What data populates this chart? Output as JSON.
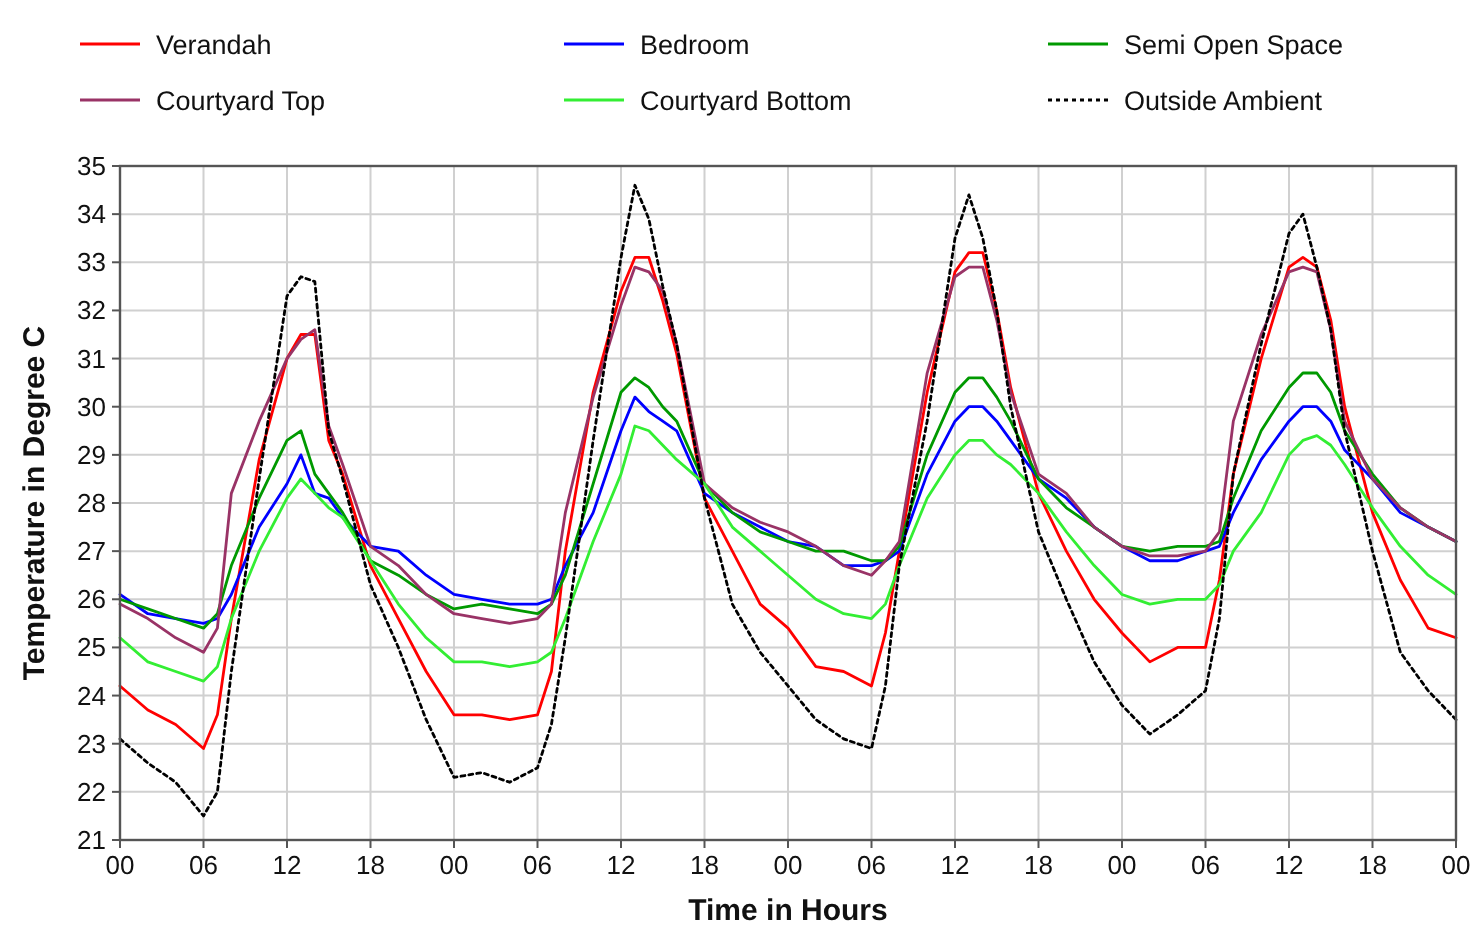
{
  "chart_data": {
    "type": "line",
    "xlabel": "Time in Hours",
    "ylabel": "Temperature in Degree C",
    "x": [
      0,
      2,
      4,
      6,
      7,
      8,
      10,
      12,
      13,
      14,
      15,
      16,
      18,
      20,
      22,
      24,
      26,
      28,
      30,
      31,
      32,
      34,
      36,
      37,
      38,
      39,
      40,
      42,
      44,
      46,
      48,
      50,
      52,
      54,
      55,
      56,
      58,
      60,
      61,
      62,
      63,
      64,
      66,
      68,
      70,
      72,
      74,
      76,
      78,
      79,
      80,
      82,
      84,
      85,
      86,
      87,
      88,
      90,
      92,
      94,
      96
    ],
    "xlim": [
      0,
      96
    ],
    "xticks": [
      {
        "value": 0,
        "label": "00"
      },
      {
        "value": 6,
        "label": "06"
      },
      {
        "value": 12,
        "label": "12"
      },
      {
        "value": 18,
        "label": "18"
      },
      {
        "value": 24,
        "label": "00"
      },
      {
        "value": 30,
        "label": "06"
      },
      {
        "value": 36,
        "label": "12"
      },
      {
        "value": 42,
        "label": "18"
      },
      {
        "value": 48,
        "label": "00"
      },
      {
        "value": 54,
        "label": "06"
      },
      {
        "value": 60,
        "label": "12"
      },
      {
        "value": 66,
        "label": "18"
      },
      {
        "value": 72,
        "label": "00"
      },
      {
        "value": 78,
        "label": "06"
      },
      {
        "value": 84,
        "label": "12"
      },
      {
        "value": 90,
        "label": "18"
      },
      {
        "value": 96,
        "label": "00"
      }
    ],
    "ylim": [
      21,
      35
    ],
    "yticks": [
      21,
      22,
      23,
      24,
      25,
      26,
      27,
      28,
      29,
      30,
      31,
      32,
      33,
      34,
      35
    ],
    "grid": true,
    "legend": "top",
    "marker": "none",
    "series": [
      {
        "name": "Verandah",
        "color": "#ff0000",
        "line_style": "solid",
        "values": [
          24.2,
          23.7,
          23.4,
          22.9,
          23.6,
          25.6,
          28.9,
          31.0,
          31.5,
          31.5,
          29.3,
          28.6,
          26.7,
          25.6,
          24.5,
          23.6,
          23.6,
          23.5,
          23.6,
          24.5,
          27.0,
          30.3,
          32.4,
          33.1,
          33.1,
          32.2,
          31.1,
          28.1,
          27.0,
          25.9,
          25.4,
          24.6,
          24.5,
          24.2,
          25.3,
          27.0,
          30.3,
          32.8,
          33.2,
          33.2,
          32.0,
          30.4,
          28.2,
          27.0,
          26.0,
          25.3,
          24.7,
          25.0,
          25.0,
          26.4,
          28.6,
          31.0,
          32.9,
          33.1,
          32.9,
          31.8,
          30.0,
          27.8,
          26.4,
          25.4,
          25.2
        ]
      },
      {
        "name": "Bedroom",
        "color": "#0000ff",
        "line_style": "solid",
        "values": [
          26.1,
          25.7,
          25.6,
          25.5,
          25.6,
          26.1,
          27.5,
          28.4,
          29.0,
          28.2,
          28.1,
          27.7,
          27.1,
          27.0,
          26.5,
          26.1,
          26.0,
          25.9,
          25.9,
          26.0,
          26.7,
          27.8,
          29.5,
          30.2,
          29.9,
          29.7,
          29.5,
          28.2,
          27.8,
          27.5,
          27.2,
          27.1,
          26.7,
          26.7,
          26.8,
          27.0,
          28.6,
          29.7,
          30.0,
          30.0,
          29.7,
          29.3,
          28.5,
          28.1,
          27.5,
          27.1,
          26.8,
          26.8,
          27.0,
          27.1,
          27.8,
          28.9,
          29.7,
          30.0,
          30.0,
          29.7,
          29.1,
          28.5,
          27.8,
          27.5,
          27.2
        ]
      },
      {
        "name": "Semi Open Space",
        "color": "#009900",
        "line_style": "solid",
        "values": [
          26.0,
          25.8,
          25.6,
          25.4,
          25.7,
          26.7,
          28.1,
          29.3,
          29.5,
          28.6,
          28.2,
          27.8,
          26.8,
          26.5,
          26.1,
          25.8,
          25.9,
          25.8,
          25.7,
          25.9,
          26.5,
          28.4,
          30.3,
          30.6,
          30.4,
          30.0,
          29.7,
          28.4,
          27.8,
          27.4,
          27.2,
          27.0,
          27.0,
          26.8,
          26.8,
          27.1,
          29.0,
          30.3,
          30.6,
          30.6,
          30.2,
          29.7,
          28.5,
          27.9,
          27.5,
          27.1,
          27.0,
          27.1,
          27.1,
          27.2,
          28.1,
          29.5,
          30.4,
          30.7,
          30.7,
          30.3,
          29.5,
          28.6,
          27.9,
          27.5,
          27.2
        ]
      },
      {
        "name": "Courtyard Top",
        "color": "#993366",
        "line_style": "solid",
        "values": [
          25.9,
          25.6,
          25.2,
          24.9,
          25.4,
          28.2,
          29.7,
          31.0,
          31.4,
          31.6,
          29.6,
          28.8,
          27.1,
          26.7,
          26.1,
          25.7,
          25.6,
          25.5,
          25.6,
          25.9,
          27.8,
          30.2,
          32.1,
          32.9,
          32.8,
          32.4,
          31.3,
          28.4,
          27.9,
          27.6,
          27.4,
          27.1,
          26.7,
          26.5,
          26.8,
          27.2,
          30.7,
          32.7,
          32.9,
          32.9,
          31.8,
          30.3,
          28.6,
          28.2,
          27.5,
          27.1,
          26.9,
          26.9,
          27.0,
          27.4,
          29.7,
          31.5,
          32.8,
          32.9,
          32.8,
          31.6,
          29.7,
          28.5,
          27.9,
          27.5,
          27.2
        ]
      },
      {
        "name": "Courtyard Bottom",
        "color": "#33ee33",
        "line_style": "solid",
        "values": [
          25.2,
          24.7,
          24.5,
          24.3,
          24.6,
          25.6,
          27.0,
          28.1,
          28.5,
          28.2,
          27.9,
          27.7,
          26.8,
          25.9,
          25.2,
          24.7,
          24.7,
          24.6,
          24.7,
          24.9,
          25.6,
          27.2,
          28.6,
          29.6,
          29.5,
          29.2,
          28.9,
          28.4,
          27.5,
          27.0,
          26.5,
          26.0,
          25.7,
          25.6,
          25.9,
          26.7,
          28.1,
          29.0,
          29.3,
          29.3,
          29.0,
          28.8,
          28.2,
          27.4,
          26.7,
          26.1,
          25.9,
          26.0,
          26.0,
          26.3,
          27.0,
          27.8,
          29.0,
          29.3,
          29.4,
          29.2,
          28.8,
          27.9,
          27.1,
          26.5,
          26.1
        ]
      },
      {
        "name": "Outside Ambient",
        "color": "#000000",
        "line_style": "dotted",
        "values": [
          23.1,
          22.6,
          22.2,
          21.5,
          22.0,
          24.5,
          28.5,
          32.3,
          32.7,
          32.6,
          29.5,
          28.5,
          26.3,
          25.0,
          23.5,
          22.3,
          22.4,
          22.2,
          22.5,
          23.4,
          25.2,
          29.3,
          33.1,
          34.6,
          33.9,
          32.5,
          31.3,
          28.1,
          25.9,
          24.9,
          24.2,
          23.5,
          23.1,
          22.9,
          24.2,
          26.7,
          29.7,
          33.5,
          34.4,
          33.5,
          32.0,
          30.0,
          27.4,
          26.0,
          24.7,
          23.8,
          23.2,
          23.6,
          24.1,
          25.6,
          28.6,
          31.3,
          33.6,
          34.0,
          32.9,
          31.6,
          29.5,
          27.0,
          24.9,
          24.1,
          23.5
        ]
      }
    ]
  }
}
